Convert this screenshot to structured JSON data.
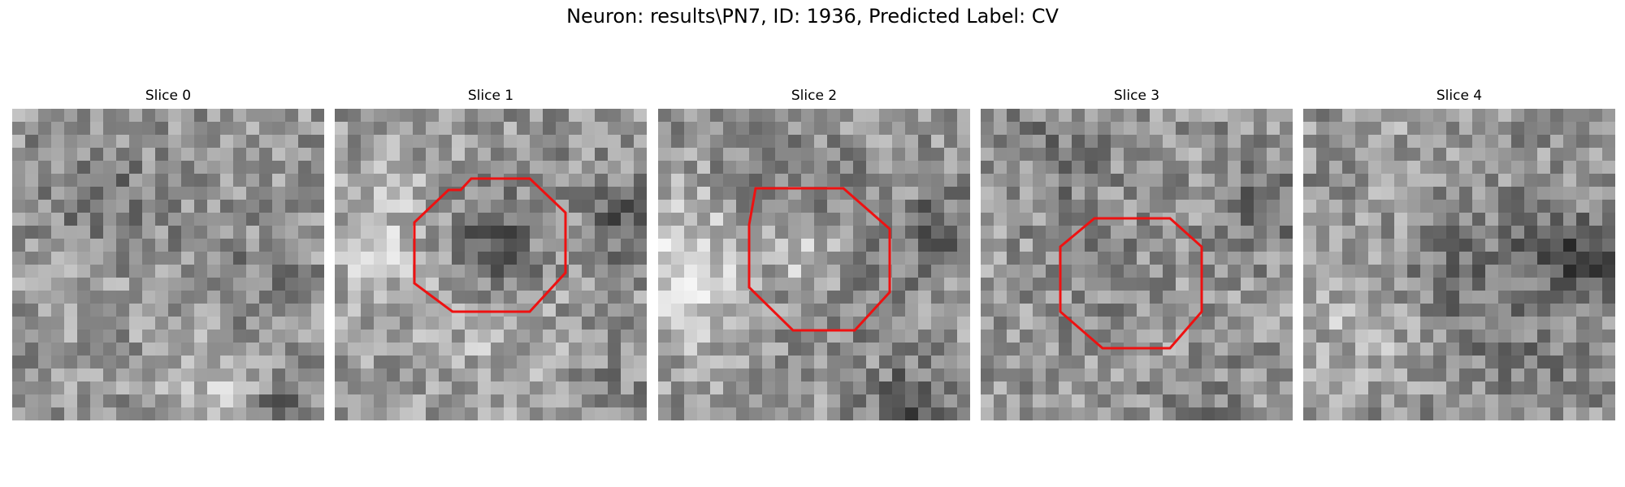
{
  "figure": {
    "title": "Neuron: results\\PN7, ID: 1936, Predicted Label: CV",
    "contour_color": "#ee1111"
  },
  "panels": [
    {
      "title": "Slice 0",
      "has_contour": false
    },
    {
      "title": "Slice 1",
      "has_contour": true
    },
    {
      "title": "Slice 2",
      "has_contour": true
    },
    {
      "title": "Slice 3",
      "has_contour": true
    },
    {
      "title": "Slice 4",
      "has_contour": false
    }
  ]
}
